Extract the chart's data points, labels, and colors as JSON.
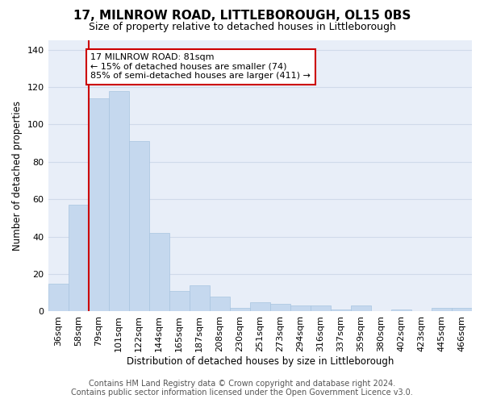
{
  "title": "17, MILNROW ROAD, LITTLEBOROUGH, OL15 0BS",
  "subtitle": "Size of property relative to detached houses in Littleborough",
  "xlabel": "Distribution of detached houses by size in Littleborough",
  "ylabel": "Number of detached properties",
  "footer_line1": "Contains HM Land Registry data © Crown copyright and database right 2024.",
  "footer_line2": "Contains public sector information licensed under the Open Government Licence v3.0.",
  "annotation_line1": "17 MILNROW ROAD: 81sqm",
  "annotation_line2": "← 15% of detached houses are smaller (74)",
  "annotation_line3": "85% of semi-detached houses are larger (411) →",
  "bar_color": "#c5d8ee",
  "bar_edge_color": "#a8c4e0",
  "vline_color": "#cc0000",
  "grid_color": "#d0daea",
  "background_color": "#e8eef8",
  "categories": [
    "36sqm",
    "58sqm",
    "79sqm",
    "101sqm",
    "122sqm",
    "144sqm",
    "165sqm",
    "187sqm",
    "208sqm",
    "230sqm",
    "251sqm",
    "273sqm",
    "294sqm",
    "316sqm",
    "337sqm",
    "359sqm",
    "380sqm",
    "402sqm",
    "423sqm",
    "445sqm",
    "466sqm"
  ],
  "values": [
    15,
    57,
    114,
    118,
    91,
    42,
    11,
    14,
    8,
    2,
    5,
    4,
    3,
    3,
    1,
    3,
    0,
    1,
    0,
    2,
    2
  ],
  "ylim": [
    0,
    145
  ],
  "yticks": [
    0,
    20,
    40,
    60,
    80,
    100,
    120,
    140
  ],
  "vline_bar_index": 2,
  "title_fontsize": 11,
  "subtitle_fontsize": 9,
  "label_fontsize": 8.5,
  "tick_fontsize": 8,
  "annot_fontsize": 8,
  "footer_fontsize": 7
}
